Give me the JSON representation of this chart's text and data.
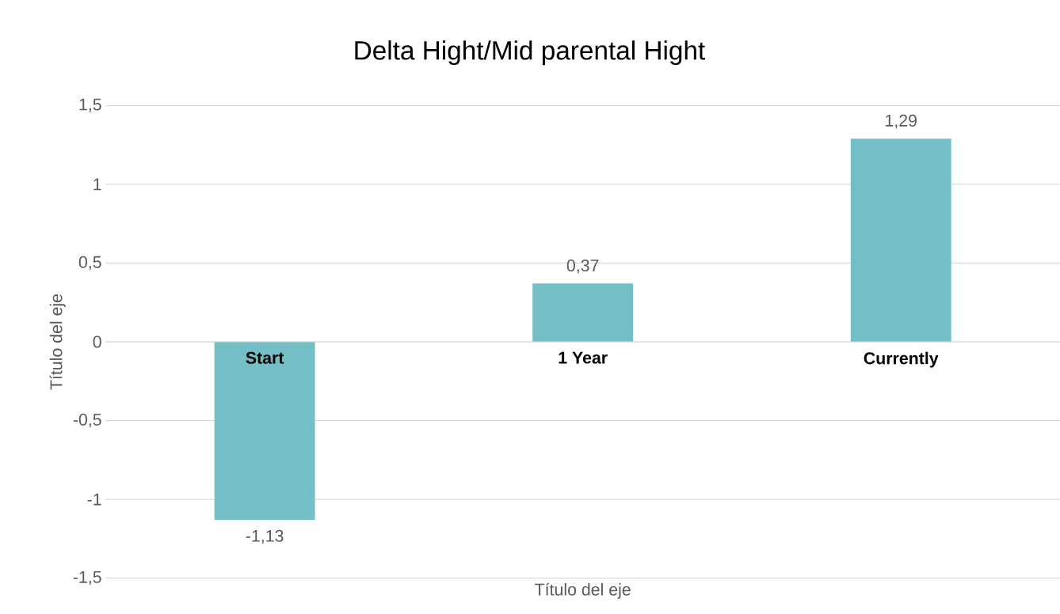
{
  "chart_data": {
    "type": "bar",
    "title": "Delta Hight/Mid parental Hight",
    "xlabel": "Título del eje",
    "ylabel": "Título del eje",
    "categories": [
      "Start",
      "1 Year",
      "Currently"
    ],
    "values": [
      -1.13,
      0.37,
      1.29
    ],
    "value_labels": [
      "-1,13",
      "0,37",
      "1,29"
    ],
    "color": "#74bfc5",
    "ylim": [
      -1.5,
      1.5
    ],
    "yticks": [
      {
        "value": -1.5,
        "label": "-1,5"
      },
      -1,
      {
        "value": -0.5,
        "label": "-0,5"
      },
      0,
      {
        "value": 0.5,
        "label": "0,5"
      },
      1,
      {
        "value": 1.5,
        "label": "1,5"
      }
    ],
    "grid": "y"
  }
}
